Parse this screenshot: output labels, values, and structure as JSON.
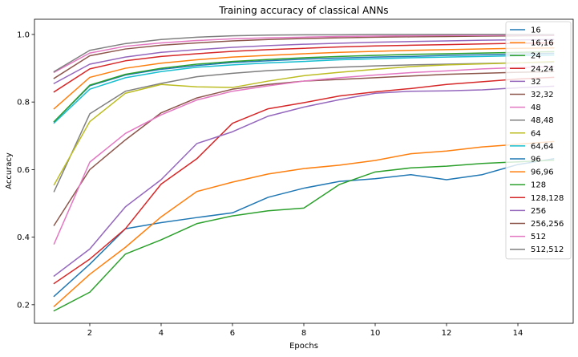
{
  "chart_data": {
    "type": "line",
    "title": "Training accuracy of classical ANNs",
    "xlabel": "Epochs",
    "ylabel": "Accuracy",
    "xlim": [
      0.45,
      15.55
    ],
    "ylim": [
      0.145,
      1.045
    ],
    "x_ticks": [
      2,
      4,
      6,
      8,
      10,
      12,
      14
    ],
    "y_ticks": [
      0.2,
      0.4,
      0.6,
      0.8,
      1.0
    ],
    "x_tick_labels": [
      "2",
      "4",
      "6",
      "8",
      "10",
      "12",
      "14"
    ],
    "y_tick_labels": [
      "0.2",
      "0.4",
      "0.6",
      "0.8",
      "1.0"
    ],
    "grid": false,
    "legend_position": "top-right",
    "x": [
      1,
      2,
      3,
      4,
      5,
      6,
      7,
      8,
      9,
      10,
      11,
      12,
      13,
      14,
      15
    ],
    "series": [
      {
        "name": "16",
        "color": "#1f77b4",
        "values": [
          0.225,
          0.32,
          0.425,
          0.443,
          0.458,
          0.472,
          0.518,
          0.545,
          0.565,
          0.573,
          0.585,
          0.57,
          0.585,
          0.615,
          0.632
        ]
      },
      {
        "name": "16,16",
        "color": "#ff7f0e",
        "values": [
          0.195,
          0.29,
          0.37,
          0.46,
          0.535,
          0.563,
          0.587,
          0.603,
          0.613,
          0.627,
          0.647,
          0.655,
          0.667,
          0.675,
          0.683
        ]
      },
      {
        "name": "24",
        "color": "#2ca02c",
        "values": [
          0.182,
          0.237,
          0.35,
          0.392,
          0.44,
          0.463,
          0.478,
          0.486,
          0.556,
          0.593,
          0.605,
          0.61,
          0.618,
          0.623,
          0.628
        ]
      },
      {
        "name": "24,24",
        "color": "#d62728",
        "values": [
          0.263,
          0.335,
          0.425,
          0.557,
          0.632,
          0.737,
          0.78,
          0.798,
          0.818,
          0.83,
          0.84,
          0.852,
          0.86,
          0.868,
          0.873
        ]
      },
      {
        "name": "32",
        "color": "#9467bd",
        "values": [
          0.285,
          0.365,
          0.49,
          0.57,
          0.677,
          0.712,
          0.758,
          0.785,
          0.807,
          0.826,
          0.832,
          0.833,
          0.836,
          0.842,
          0.847
        ]
      },
      {
        "name": "32,32",
        "color": "#8c564b",
        "values": [
          0.435,
          0.6,
          0.688,
          0.768,
          0.812,
          0.838,
          0.852,
          0.862,
          0.867,
          0.872,
          0.877,
          0.882,
          0.885,
          0.888,
          0.89
        ]
      },
      {
        "name": "48",
        "color": "#e377c2",
        "values": [
          0.38,
          0.622,
          0.707,
          0.762,
          0.806,
          0.832,
          0.848,
          0.862,
          0.872,
          0.88,
          0.887,
          0.892,
          0.898,
          0.902,
          0.905
        ]
      },
      {
        "name": "48,48",
        "color": "#7f7f7f",
        "values": [
          0.535,
          0.765,
          0.832,
          0.855,
          0.875,
          0.885,
          0.893,
          0.898,
          0.903,
          0.907,
          0.91,
          0.912,
          0.914,
          0.916,
          0.918
        ]
      },
      {
        "name": "64",
        "color": "#bcbd22",
        "values": [
          0.555,
          0.742,
          0.826,
          0.852,
          0.845,
          0.843,
          0.862,
          0.878,
          0.888,
          0.897,
          0.905,
          0.91,
          0.913,
          0.916,
          0.92
        ]
      },
      {
        "name": "64,64",
        "color": "#17becf",
        "values": [
          0.738,
          0.838,
          0.872,
          0.89,
          0.903,
          0.91,
          0.916,
          0.92,
          0.925,
          0.928,
          0.931,
          0.933,
          0.935,
          0.937,
          0.939
        ]
      },
      {
        "name": "96",
        "color": "#1f77b4",
        "values": [
          0.742,
          0.848,
          0.88,
          0.897,
          0.908,
          0.917,
          0.922,
          0.927,
          0.93,
          0.933,
          0.935,
          0.938,
          0.94,
          0.942,
          0.944
        ]
      },
      {
        "name": "96,96",
        "color": "#ff7f0e",
        "values": [
          0.78,
          0.873,
          0.9,
          0.915,
          0.925,
          0.933,
          0.938,
          0.943,
          0.947,
          0.95,
          0.953,
          0.955,
          0.957,
          0.959,
          0.96
        ]
      },
      {
        "name": "128",
        "color": "#2ca02c",
        "values": [
          0.742,
          0.85,
          0.882,
          0.9,
          0.912,
          0.92,
          0.926,
          0.931,
          0.935,
          0.938,
          0.941,
          0.943,
          0.945,
          0.947,
          0.949
        ]
      },
      {
        "name": "128,128",
        "color": "#d62728",
        "values": [
          0.83,
          0.898,
          0.922,
          0.935,
          0.943,
          0.95,
          0.955,
          0.959,
          0.963,
          0.966,
          0.968,
          0.97,
          0.972,
          0.974,
          0.975
        ]
      },
      {
        "name": "256",
        "color": "#9467bd",
        "values": [
          0.855,
          0.912,
          0.933,
          0.947,
          0.955,
          0.962,
          0.967,
          0.971,
          0.974,
          0.977,
          0.979,
          0.981,
          0.983,
          0.984,
          0.985
        ]
      },
      {
        "name": "256,256",
        "color": "#8c564b",
        "values": [
          0.87,
          0.937,
          0.957,
          0.968,
          0.975,
          0.981,
          0.985,
          0.988,
          0.99,
          0.992,
          0.993,
          0.994,
          0.995,
          0.996,
          0.997
        ]
      },
      {
        "name": "512",
        "color": "#e377c2",
        "values": [
          0.888,
          0.945,
          0.965,
          0.975,
          0.982,
          0.987,
          0.99,
          0.992,
          0.994,
          0.995,
          0.996,
          0.997,
          0.997,
          0.998,
          0.998
        ]
      },
      {
        "name": "512,512",
        "color": "#7f7f7f",
        "values": [
          0.89,
          0.953,
          0.973,
          0.985,
          0.992,
          0.996,
          0.998,
          0.999,
          0.999,
          1.0,
          1.0,
          1.0,
          1.0,
          1.0,
          1.0
        ]
      }
    ]
  }
}
